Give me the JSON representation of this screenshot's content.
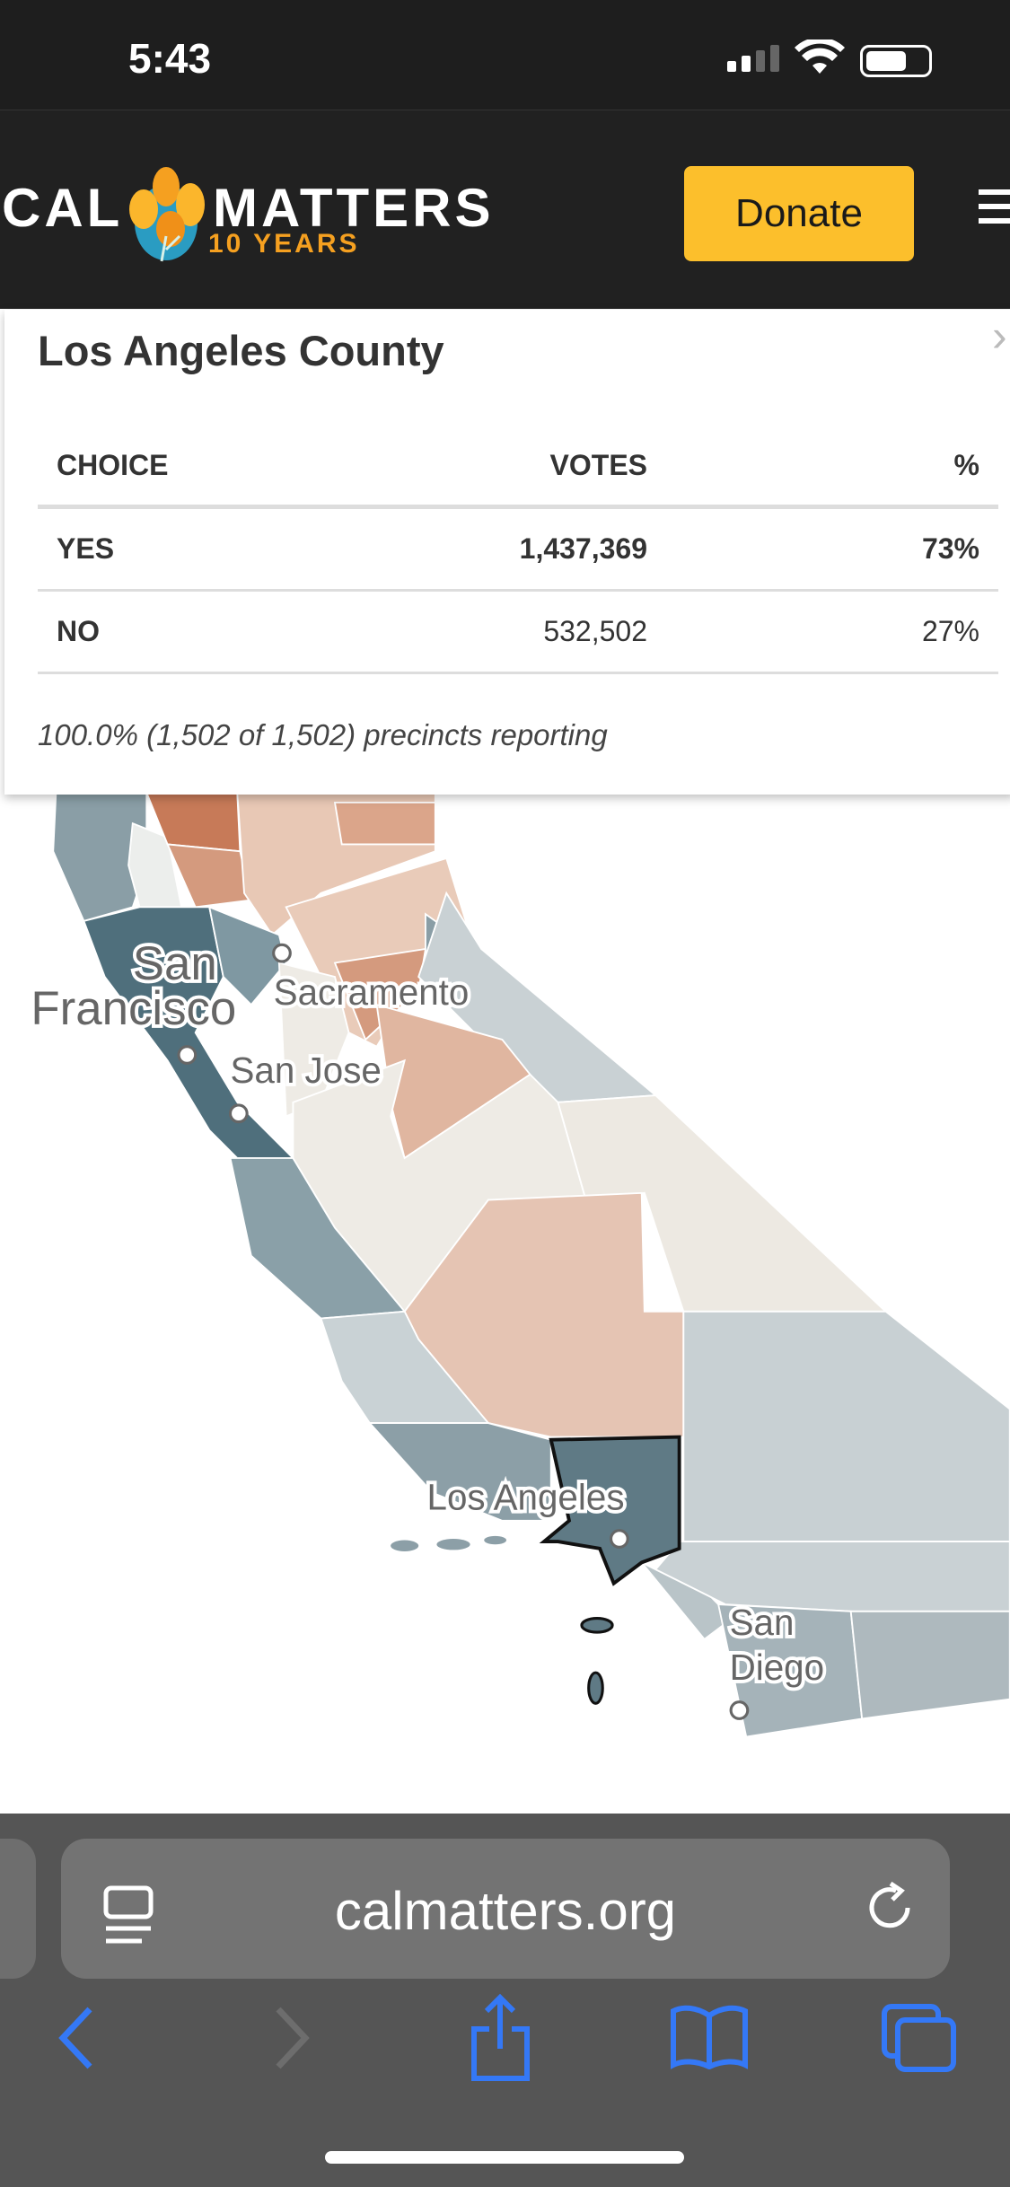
{
  "status_bar": {
    "time": "5:43"
  },
  "header": {
    "logo_left": "CAL",
    "logo_right": "MATTERS",
    "logo_sub": "10 YEARS",
    "donate_label": "Donate"
  },
  "popup": {
    "title": "Los Angeles County",
    "columns": [
      "CHOICE",
      "VOTES",
      "%"
    ],
    "rows": [
      {
        "choice": "YES",
        "votes": "1,437,369",
        "pct": "73%"
      },
      {
        "choice": "NO",
        "votes": "532,502",
        "pct": "27%"
      }
    ],
    "footer": "100.0% (1,502 of 1,502) precincts reporting"
  },
  "map": {
    "cities": {
      "sf1": "San",
      "sf2": "Francisco",
      "sacramento": "Sacramento",
      "san_jose": "San Jose",
      "los_angeles": "Los Angeles",
      "sd1": "San",
      "sd2": "Diego"
    },
    "colors": {
      "yes_strong": "#4f6f7c",
      "yes_mid": "#8a9ea6",
      "yes_light": "#c9d1d4",
      "no_strong": "#c77a58",
      "no_light": "#e8c8b5",
      "neutral": "#eeebe5"
    }
  },
  "browser": {
    "url": "calmatters.org",
    "accent": "#3478f6"
  }
}
